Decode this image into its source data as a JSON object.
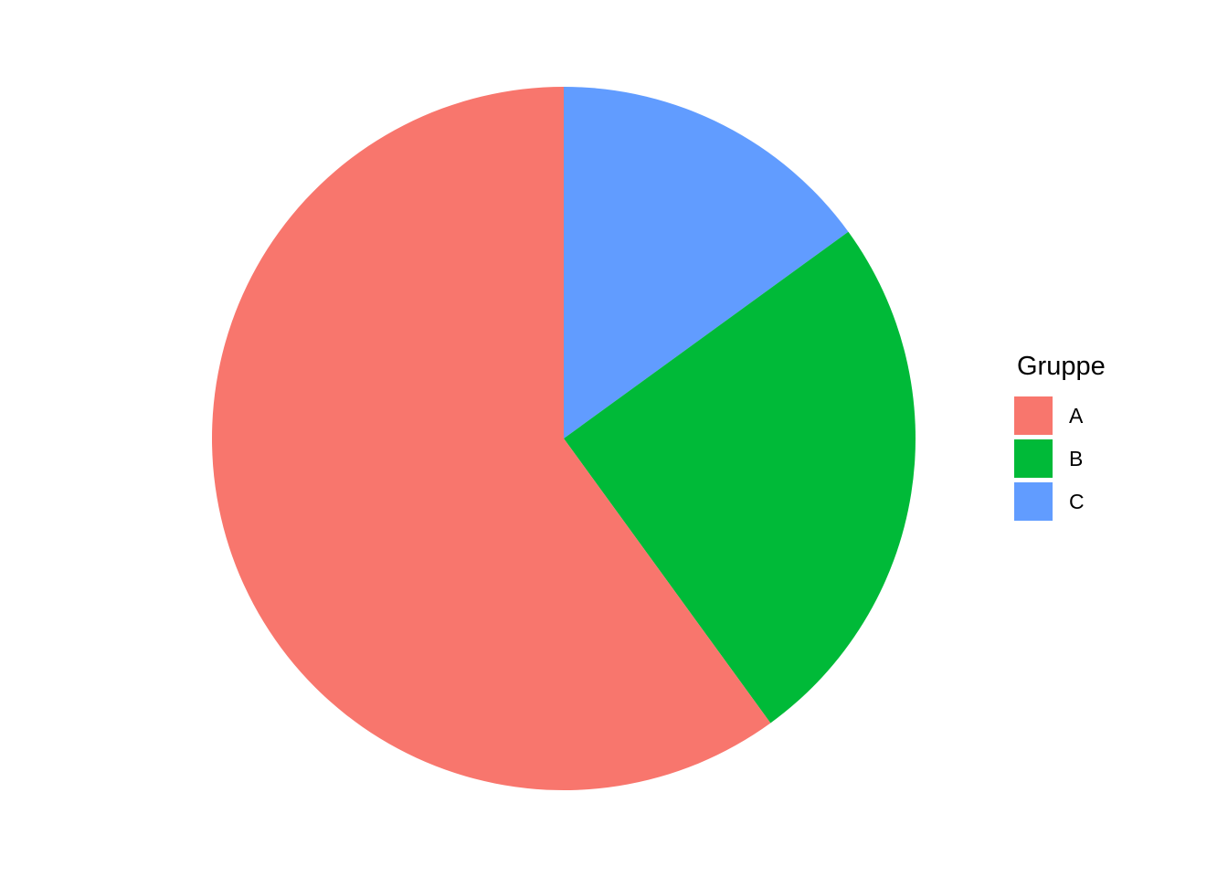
{
  "chart_data": {
    "type": "pie",
    "legend_title": "Gruppe",
    "categories": [
      "A",
      "B",
      "C"
    ],
    "values": [
      60,
      25,
      15
    ],
    "unit": "percent",
    "colors": [
      "#F8766D",
      "#00BA38",
      "#619CFF"
    ],
    "start_angle_deg": 0,
    "order_clockwise_from_top": [
      "C",
      "B",
      "A"
    ],
    "title": "",
    "data_labels": "none",
    "legend_position": "right",
    "background": "#FFFFFF"
  }
}
